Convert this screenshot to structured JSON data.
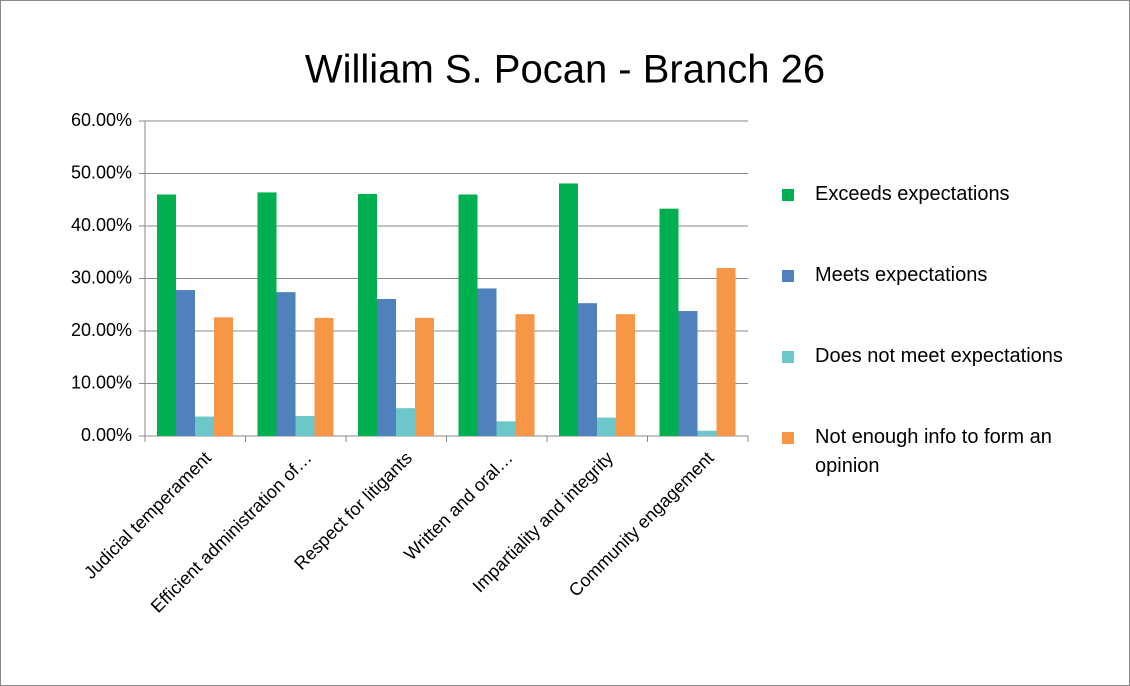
{
  "chart_data": {
    "type": "bar",
    "title": "William S. Pocan - Branch 26",
    "categories": [
      "Judicial temperament",
      "Efficient administration of…",
      "Respect for litigants",
      "Written and oral…",
      "Impartiality and integrity",
      "Community engagement"
    ],
    "series": [
      {
        "name": "Exceeds expectations",
        "color": "#00b050",
        "values": [
          46.0,
          46.4,
          46.1,
          46.0,
          48.1,
          43.3
        ]
      },
      {
        "name": "Meets expectations",
        "color": "#4f81bd",
        "values": [
          27.8,
          27.4,
          26.1,
          28.1,
          25.3,
          23.8
        ]
      },
      {
        "name": "Does not meet expectations",
        "color": "#6cc7cb",
        "values": [
          3.7,
          3.8,
          5.3,
          2.8,
          3.5,
          1.0
        ]
      },
      {
        "name": "Not enough info to form an opinion",
        "color": "#f79646",
        "values": [
          22.6,
          22.5,
          22.5,
          23.2,
          23.2,
          32.0
        ]
      }
    ],
    "ylim": [
      0,
      60
    ],
    "yticks": [
      {
        "value": 0,
        "label": "0.00%"
      },
      {
        "value": 10,
        "label": "10.00%"
      },
      {
        "value": 20,
        "label": "20.00%"
      },
      {
        "value": 30,
        "label": "30.00%"
      },
      {
        "value": 40,
        "label": "40.00%"
      },
      {
        "value": 50,
        "label": "50.00%"
      },
      {
        "value": 60,
        "label": "60.00%"
      }
    ],
    "grid": true,
    "legend": "right"
  }
}
